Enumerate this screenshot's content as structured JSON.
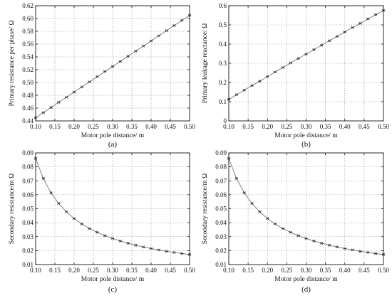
{
  "figure": {
    "panels": [
      {
        "label": "(a)",
        "chart_data": {
          "type": "line",
          "title": "",
          "xlabel": "Motor pole distance/ m",
          "ylabel": "Primary resistance per phase/ Ω",
          "xlim": [
            0.1,
            0.5
          ],
          "ylim": [
            0.44,
            0.62
          ],
          "grid": true,
          "xticks": [
            0.1,
            0.15,
            0.2,
            0.25,
            0.3,
            0.35,
            0.4,
            0.45,
            0.5
          ],
          "xtick_labels": [
            "0.10",
            "0.15",
            "0.20",
            "0.25",
            "0.30",
            "0.35",
            "0.40",
            "0.45",
            "0.50"
          ],
          "yticks": [
            0.44,
            0.46,
            0.48,
            0.5,
            0.52,
            0.54,
            0.56,
            0.58,
            0.6,
            0.62
          ],
          "ytick_labels": [
            "0.44",
            "0.46",
            "0.48",
            "0.50",
            "0.52",
            "0.54",
            "0.56",
            "0.58",
            "0.60",
            "0.62"
          ],
          "series": [
            {
              "x": [
                0.1,
                0.12,
                0.14,
                0.16,
                0.18,
                0.2,
                0.22,
                0.24,
                0.26,
                0.28,
                0.3,
                0.32,
                0.34,
                0.36,
                0.38,
                0.4,
                0.42,
                0.44,
                0.46,
                0.48,
                0.5
              ],
              "values": [
                0.445,
                0.453,
                0.461,
                0.469,
                0.477,
                0.485,
                0.493,
                0.501,
                0.509,
                0.517,
                0.525,
                0.533,
                0.541,
                0.549,
                0.557,
                0.565,
                0.573,
                0.581,
                0.589,
                0.597,
                0.605
              ]
            }
          ]
        }
      },
      {
        "label": "(b)",
        "chart_data": {
          "type": "line",
          "title": "",
          "xlabel": "Motor pole distance/ m",
          "ylabel": "Primary leakage reactance/ Ω",
          "xlim": [
            0.1,
            0.5
          ],
          "ylim": [
            0,
            0.6
          ],
          "grid": true,
          "xticks": [
            0.1,
            0.15,
            0.2,
            0.25,
            0.3,
            0.35,
            0.4,
            0.45,
            0.5
          ],
          "xtick_labels": [
            "0.10",
            "0.15",
            "0.20",
            "0.25",
            "0.30",
            "0.35",
            "0.40",
            "0.45",
            "0.50"
          ],
          "yticks": [
            0,
            0.1,
            0.2,
            0.3,
            0.4,
            0.5,
            0.6
          ],
          "ytick_labels": [
            "0",
            "0.1",
            "0.2",
            "0.3",
            "0.4",
            "0.5",
            "0.6"
          ],
          "series": [
            {
              "x": [
                0.1,
                0.12,
                0.14,
                0.16,
                0.18,
                0.2,
                0.22,
                0.24,
                0.26,
                0.28,
                0.3,
                0.32,
                0.34,
                0.36,
                0.38,
                0.4,
                0.42,
                0.44,
                0.46,
                0.48,
                0.5
              ],
              "values": [
                0.112,
                0.136,
                0.16,
                0.184,
                0.207,
                0.231,
                0.255,
                0.278,
                0.302,
                0.325,
                0.348,
                0.371,
                0.394,
                0.417,
                0.44,
                0.463,
                0.486,
                0.508,
                0.531,
                0.553,
                0.575
              ]
            }
          ]
        }
      },
      {
        "label": "(c)",
        "chart_data": {
          "type": "line",
          "title": "",
          "xlabel": "Motor pole distance/ m",
          "ylabel": "Secondary resistance/m Ω",
          "xlim": [
            0.1,
            0.5
          ],
          "ylim": [
            0.01,
            0.09
          ],
          "grid": true,
          "xticks": [
            0.1,
            0.15,
            0.2,
            0.25,
            0.3,
            0.35,
            0.4,
            0.45,
            0.5
          ],
          "xtick_labels": [
            "0.10",
            "0.15",
            "0.20",
            "0.25",
            "0.30",
            "0.35",
            "0.40",
            "0.45",
            "0.50"
          ],
          "yticks": [
            0.01,
            0.02,
            0.03,
            0.04,
            0.05,
            0.06,
            0.07,
            0.08,
            0.09
          ],
          "ytick_labels": [
            "0.01",
            "0.02",
            "0.03",
            "0.04",
            "0.05",
            "0.06",
            "0.07",
            "0.08",
            "0.09"
          ],
          "series": [
            {
              "x": [
                0.1,
                0.12,
                0.14,
                0.16,
                0.18,
                0.2,
                0.22,
                0.24,
                0.26,
                0.28,
                0.3,
                0.32,
                0.34,
                0.36,
                0.38,
                0.4,
                0.42,
                0.44,
                0.46,
                0.48,
                0.5
              ],
              "values": [
                0.086,
                0.0717,
                0.0614,
                0.0538,
                0.0478,
                0.043,
                0.0391,
                0.0358,
                0.0331,
                0.0307,
                0.0287,
                0.0269,
                0.0253,
                0.0239,
                0.0226,
                0.0215,
                0.0205,
                0.0195,
                0.0187,
                0.0179,
                0.0172
              ]
            }
          ]
        }
      },
      {
        "label": "(d)",
        "chart_data": {
          "type": "line",
          "title": "",
          "xlabel": "Motor pole distance/ m",
          "ylabel": "Secondary resistance/m Ω",
          "xlim": [
            0.1,
            0.5
          ],
          "ylim": [
            0.01,
            0.09
          ],
          "grid": true,
          "xticks": [
            0.1,
            0.15,
            0.2,
            0.25,
            0.3,
            0.35,
            0.4,
            0.45,
            0.5
          ],
          "xtick_labels": [
            "0.10",
            "0.15",
            "0.20",
            "0.25",
            "0.30",
            "0.35",
            "0.40",
            "0.45",
            "0.50"
          ],
          "yticks": [
            0.01,
            0.02,
            0.03,
            0.04,
            0.05,
            0.06,
            0.07,
            0.08,
            0.09
          ],
          "ytick_labels": [
            "0.01",
            "0.02",
            "0.03",
            "0.04",
            "0.05",
            "0.06",
            "0.07",
            "0.08",
            "0.09"
          ],
          "series": [
            {
              "x": [
                0.1,
                0.12,
                0.14,
                0.16,
                0.18,
                0.2,
                0.22,
                0.24,
                0.26,
                0.28,
                0.3,
                0.32,
                0.34,
                0.36,
                0.38,
                0.4,
                0.42,
                0.44,
                0.46,
                0.48,
                0.5
              ],
              "values": [
                0.086,
                0.0717,
                0.0614,
                0.0538,
                0.0478,
                0.043,
                0.0391,
                0.0358,
                0.0331,
                0.0307,
                0.0287,
                0.0269,
                0.0253,
                0.0239,
                0.0226,
                0.0215,
                0.0205,
                0.0195,
                0.0187,
                0.0179,
                0.0172
              ]
            }
          ]
        }
      }
    ]
  },
  "colors": {
    "axis": "#111111",
    "grid": "#888888",
    "line": "#777777",
    "marker": "#333333"
  }
}
